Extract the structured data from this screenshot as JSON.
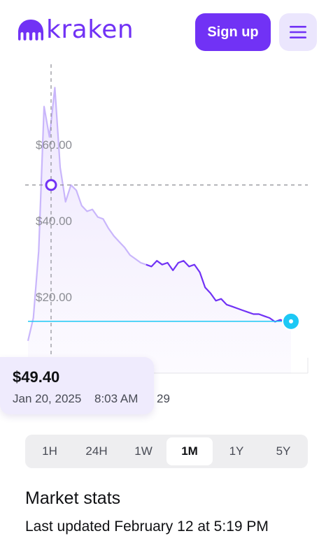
{
  "header": {
    "logo_text": "kraken",
    "signup_label": "Sign up",
    "menu_icon": "hamburger-menu-icon",
    "brand_color": "#7132f5"
  },
  "chart_data": {
    "type": "line",
    "title": "",
    "xlabel": "",
    "ylabel": "",
    "ylim": [
      0,
      80
    ],
    "y_ticks": [
      "$60.00",
      "$40.00",
      "$20.00"
    ],
    "x_ticks": [
      "29"
    ],
    "series": [
      {
        "values": [
          8.5,
          14.5,
          32.0,
          70.0,
          62.0,
          75.0,
          54.0,
          45.0,
          49.4,
          48.0,
          44.0,
          42.5,
          43.0,
          41.0,
          40.5,
          38.0,
          36.0,
          34.5,
          33.0,
          31.0,
          30.0,
          29.0,
          28.5,
          28.0,
          29.5,
          28.5,
          29.0,
          27.0,
          29.0,
          29.5,
          28.0,
          28.5,
          26.5,
          22.5,
          21.0,
          19.0,
          19.5,
          18.0,
          17.5,
          17.0,
          16.5,
          16.0,
          15.5,
          15.5,
          15.0,
          14.5,
          13.5,
          14.0,
          13.5,
          13.6
        ]
      }
    ],
    "current_price": 13.6,
    "hover_value": 49.4,
    "colors": {
      "line": "#7132f5",
      "current": "#1dc8f5"
    }
  },
  "tooltip": {
    "price": "$49.40",
    "date": "Jan 20, 2025",
    "time": "8:03 AM"
  },
  "range_tabs": [
    {
      "label": "1H",
      "active": false
    },
    {
      "label": "24H",
      "active": false
    },
    {
      "label": "1W",
      "active": false
    },
    {
      "label": "1M",
      "active": true
    },
    {
      "label": "1Y",
      "active": false
    },
    {
      "label": "5Y",
      "active": false
    }
  ],
  "stats": {
    "title": "Market stats",
    "updated": "Last updated February 12 at 5:19 PM"
  }
}
